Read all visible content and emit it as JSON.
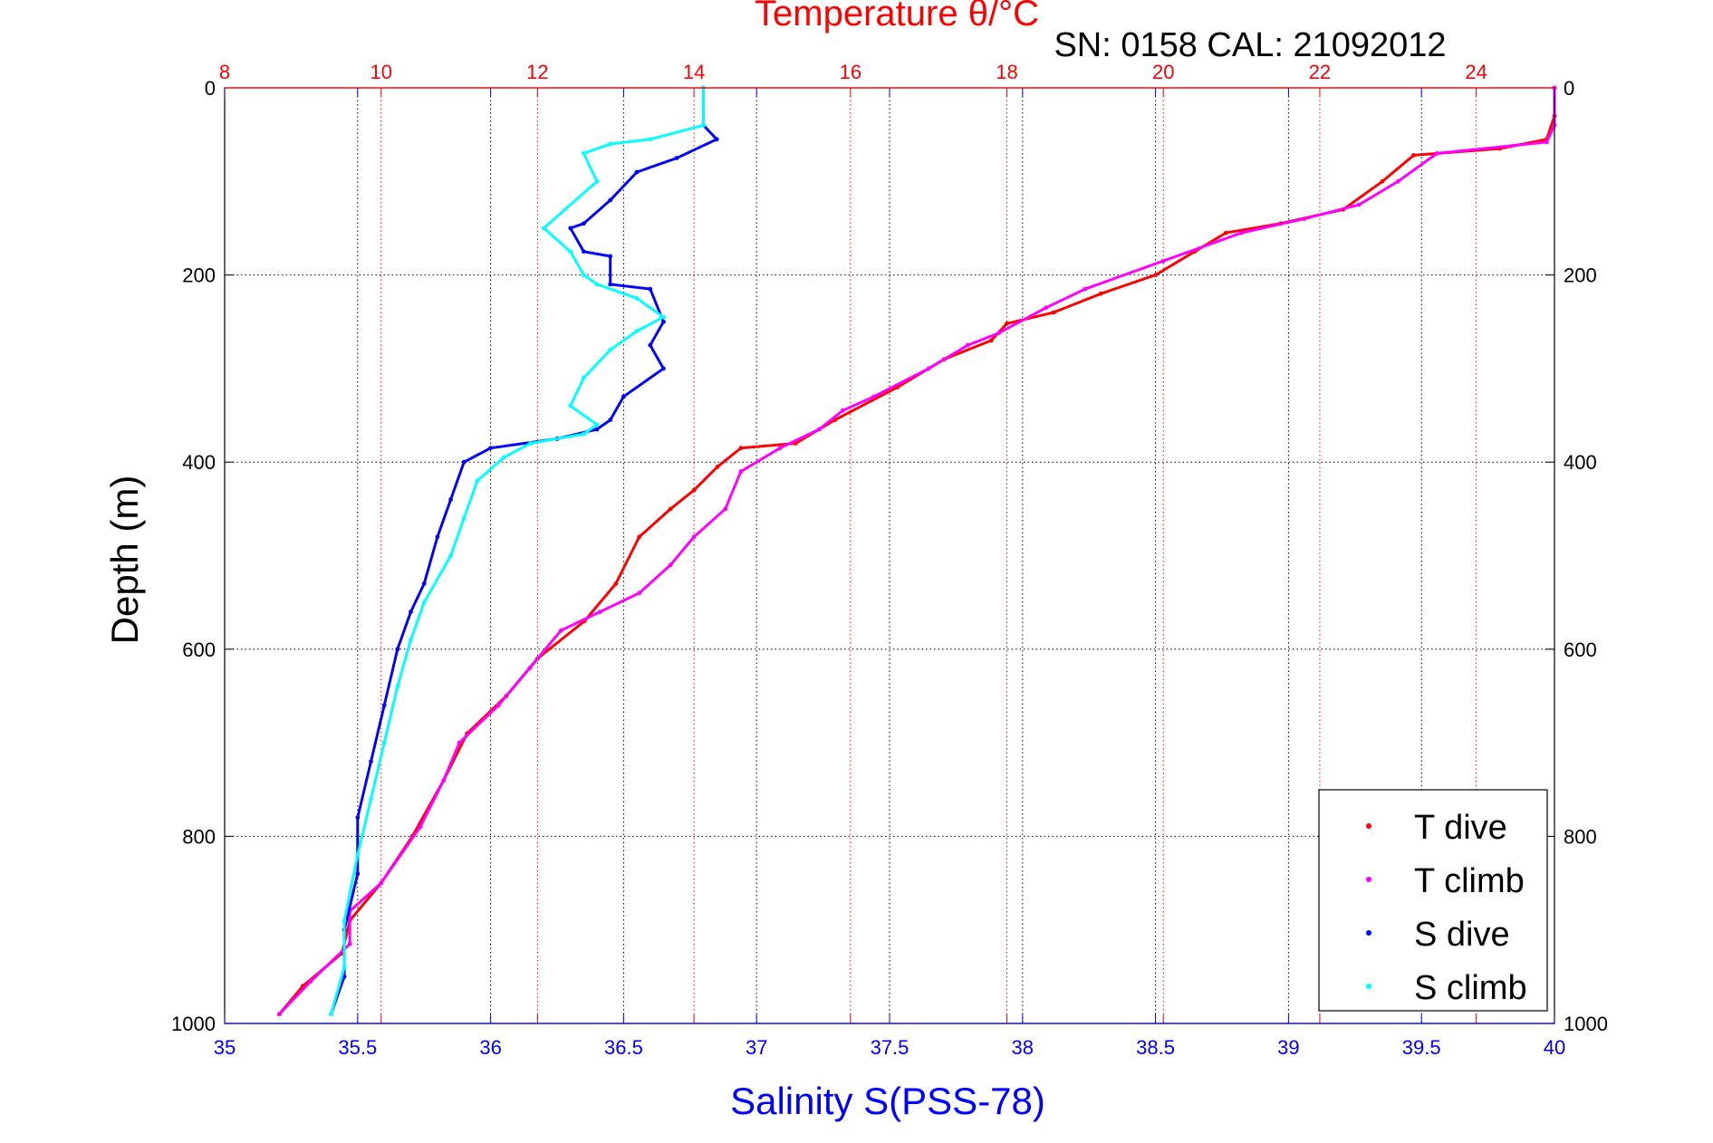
{
  "chart_data": {
    "type": "scatter",
    "title": "Temperature θ/°C",
    "subtitle": "SN: 0158  CAL: 21092012",
    "ylabel": "Depth (m)",
    "xlabel": "Salinity S(PSS-78)",
    "ylim": [
      0,
      1000
    ],
    "y_reversed": true,
    "x_bottom_lim": [
      35,
      40
    ],
    "x_top_lim": [
      8,
      25
    ],
    "y_ticks": [
      "0",
      "200",
      "400",
      "600",
      "800",
      "1000"
    ],
    "y_tick_values": [
      0,
      200,
      400,
      600,
      800,
      1000
    ],
    "x_bottom_ticks": [
      "35",
      "35.5",
      "36",
      "36.5",
      "37",
      "37.5",
      "38",
      "38.5",
      "39",
      "39.5",
      "40"
    ],
    "x_bottom_tick_values": [
      35,
      35.5,
      36,
      36.5,
      37,
      37.5,
      38,
      38.5,
      39,
      39.5,
      40
    ],
    "x_top_ticks": [
      "8",
      "10",
      "12",
      "14",
      "16",
      "18",
      "20",
      "22",
      "24"
    ],
    "x_top_tick_values": [
      8,
      10,
      12,
      14,
      16,
      18,
      20,
      22,
      24
    ],
    "grid": true,
    "legend_position": "bottom-right",
    "colors": {
      "temperature_axis": "#ff0000",
      "salinity_axis": "#0000ff",
      "t_dive": "#ff0000",
      "t_climb": "#ff00ff",
      "s_dive": "#0000ff",
      "s_climb": "#00ffff"
    },
    "series": [
      {
        "name": "T dive",
        "axis": "top",
        "color": "#ff0000",
        "points": [
          [
            25.0,
            0
          ],
          [
            25.0,
            30
          ],
          [
            24.9,
            55
          ],
          [
            24.3,
            65
          ],
          [
            23.2,
            72
          ],
          [
            22.8,
            100
          ],
          [
            22.3,
            130
          ],
          [
            21.5,
            145
          ],
          [
            20.8,
            155
          ],
          [
            20.4,
            175
          ],
          [
            19.9,
            200
          ],
          [
            19.2,
            220
          ],
          [
            18.6,
            240
          ],
          [
            18.0,
            252
          ],
          [
            17.8,
            270
          ],
          [
            17.2,
            290
          ],
          [
            16.6,
            320
          ],
          [
            15.8,
            355
          ],
          [
            15.3,
            380
          ],
          [
            14.6,
            385
          ],
          [
            14.3,
            405
          ],
          [
            14.0,
            430
          ],
          [
            13.7,
            450
          ],
          [
            13.3,
            480
          ],
          [
            13.0,
            530
          ],
          [
            12.6,
            570
          ],
          [
            12.0,
            610
          ],
          [
            11.6,
            650
          ],
          [
            11.1,
            690
          ],
          [
            10.8,
            740
          ],
          [
            10.4,
            800
          ],
          [
            10.0,
            850
          ],
          [
            9.6,
            890
          ],
          [
            9.5,
            925
          ],
          [
            9.0,
            960
          ],
          [
            8.7,
            990
          ]
        ]
      },
      {
        "name": "T climb",
        "axis": "top",
        "color": "#ff00ff",
        "points": [
          [
            25.0,
            0
          ],
          [
            25.0,
            40
          ],
          [
            24.9,
            58
          ],
          [
            23.5,
            70
          ],
          [
            23.0,
            100
          ],
          [
            22.5,
            125
          ],
          [
            21.8,
            140
          ],
          [
            21.0,
            155
          ],
          [
            20.0,
            185
          ],
          [
            19.0,
            215
          ],
          [
            18.5,
            235
          ],
          [
            17.9,
            262
          ],
          [
            17.5,
            275
          ],
          [
            17.0,
            300
          ],
          [
            16.3,
            330
          ],
          [
            15.9,
            345
          ],
          [
            15.6,
            365
          ],
          [
            15.1,
            385
          ],
          [
            14.6,
            410
          ],
          [
            14.4,
            450
          ],
          [
            14.0,
            480
          ],
          [
            13.7,
            510
          ],
          [
            13.3,
            540
          ],
          [
            12.8,
            560
          ],
          [
            12.3,
            580
          ],
          [
            11.9,
            620
          ],
          [
            11.5,
            660
          ],
          [
            11.0,
            700
          ],
          [
            10.8,
            740
          ],
          [
            10.5,
            790
          ],
          [
            10.0,
            850
          ],
          [
            9.6,
            880
          ],
          [
            9.6,
            915
          ],
          [
            9.1,
            955
          ],
          [
            8.7,
            990
          ]
        ]
      },
      {
        "name": "S dive",
        "axis": "bottom",
        "color": "#0000ff",
        "points": [
          [
            36.8,
            0
          ],
          [
            36.8,
            40
          ],
          [
            36.85,
            55
          ],
          [
            36.7,
            75
          ],
          [
            36.55,
            90
          ],
          [
            36.45,
            120
          ],
          [
            36.35,
            145
          ],
          [
            36.3,
            150
          ],
          [
            36.35,
            175
          ],
          [
            36.45,
            180
          ],
          [
            36.45,
            210
          ],
          [
            36.6,
            215
          ],
          [
            36.65,
            250
          ],
          [
            36.6,
            275
          ],
          [
            36.65,
            300
          ],
          [
            36.5,
            330
          ],
          [
            36.45,
            355
          ],
          [
            36.4,
            365
          ],
          [
            36.25,
            375
          ],
          [
            36.0,
            385
          ],
          [
            35.9,
            400
          ],
          [
            35.85,
            440
          ],
          [
            35.8,
            480
          ],
          [
            35.75,
            530
          ],
          [
            35.7,
            560
          ],
          [
            35.65,
            600
          ],
          [
            35.6,
            660
          ],
          [
            35.55,
            720
          ],
          [
            35.5,
            780
          ],
          [
            35.5,
            840
          ],
          [
            35.45,
            900
          ],
          [
            35.45,
            950
          ],
          [
            35.4,
            990
          ]
        ]
      },
      {
        "name": "S climb",
        "axis": "bottom",
        "color": "#00ffff",
        "points": [
          [
            36.8,
            0
          ],
          [
            36.8,
            40
          ],
          [
            36.6,
            55
          ],
          [
            36.45,
            60
          ],
          [
            36.35,
            70
          ],
          [
            36.4,
            100
          ],
          [
            36.2,
            150
          ],
          [
            36.3,
            175
          ],
          [
            36.35,
            200
          ],
          [
            36.4,
            210
          ],
          [
            36.55,
            225
          ],
          [
            36.65,
            245
          ],
          [
            36.55,
            260
          ],
          [
            36.45,
            280
          ],
          [
            36.35,
            310
          ],
          [
            36.3,
            340
          ],
          [
            36.4,
            360
          ],
          [
            36.35,
            370
          ],
          [
            36.15,
            380
          ],
          [
            36.05,
            395
          ],
          [
            35.95,
            420
          ],
          [
            35.9,
            460
          ],
          [
            35.85,
            500
          ],
          [
            35.75,
            550
          ],
          [
            35.7,
            590
          ],
          [
            35.65,
            640
          ],
          [
            35.6,
            700
          ],
          [
            35.55,
            760
          ],
          [
            35.5,
            820
          ],
          [
            35.45,
            890
          ],
          [
            35.45,
            940
          ],
          [
            35.4,
            990
          ]
        ]
      }
    ]
  }
}
